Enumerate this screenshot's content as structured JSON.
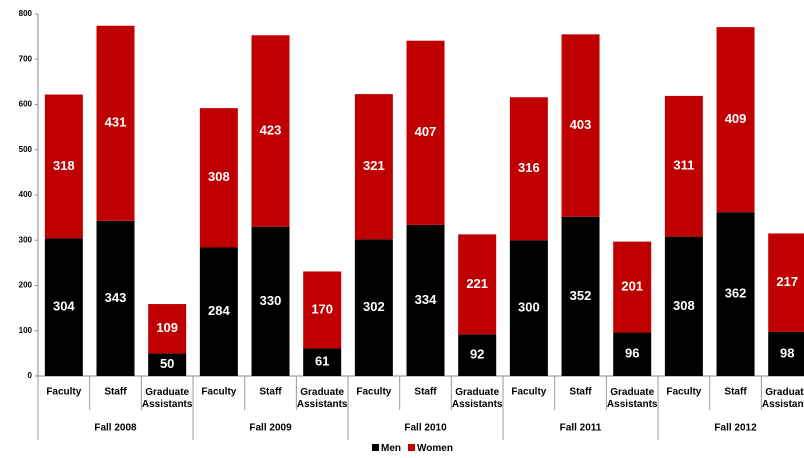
{
  "chart_data": {
    "type": "stacked_bar",
    "categories": [
      "Faculty",
      "Staff",
      "Graduate Assistants",
      "Faculty",
      "Staff",
      "Graduate Assistants",
      "Faculty",
      "Staff",
      "Graduate Assistants",
      "Faculty",
      "Staff",
      "Graduate Assistants",
      "Faculty",
      "Staff",
      "Graduate Assistants"
    ],
    "groups": [
      "Fall 2008",
      "Fall 2009",
      "Fall 2010",
      "Fall 2011",
      "Fall 2012"
    ],
    "series": [
      {
        "name": "Men",
        "color": "#000000",
        "values": [
          304,
          343,
          50,
          284,
          330,
          61,
          302,
          334,
          92,
          300,
          352,
          96,
          308,
          362,
          98
        ]
      },
      {
        "name": "Women",
        "color": "#c00000",
        "values": [
          318,
          431,
          109,
          308,
          423,
          170,
          321,
          407,
          221,
          316,
          403,
          201,
          311,
          409,
          217
        ]
      }
    ],
    "ylim": [
      0,
      800
    ],
    "yticks": [
      0,
      100,
      200,
      300,
      400,
      500,
      600,
      700,
      800
    ],
    "legend": "bottom"
  }
}
